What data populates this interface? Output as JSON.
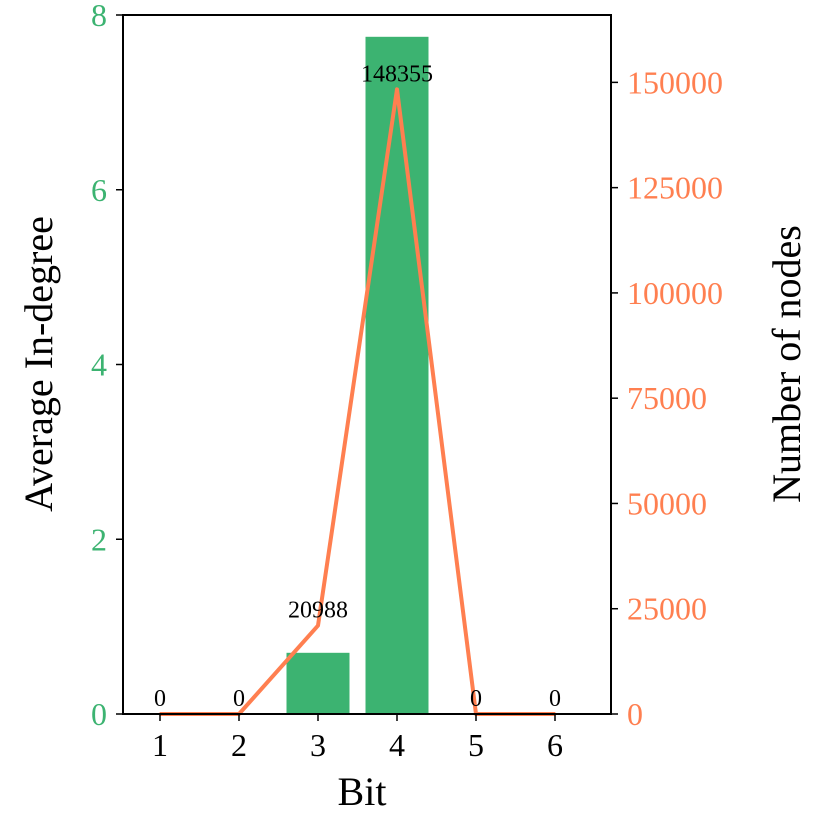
{
  "chart_data": {
    "type": "bar",
    "categories": [
      "1",
      "2",
      "3",
      "4",
      "5",
      "6"
    ],
    "xlabel": "Bit",
    "series": [
      {
        "name": "Average In-degree",
        "type": "bar",
        "axis": "left",
        "color": "#3cb371",
        "values": [
          0,
          0,
          0.7,
          7.75,
          0,
          0
        ]
      },
      {
        "name": "Number of nodes",
        "type": "line",
        "axis": "right",
        "color": "#ff7f50",
        "values": [
          0,
          0,
          20988,
          148355,
          0,
          0
        ],
        "data_labels": [
          "0",
          "0",
          "20988",
          "148355",
          "0",
          "0"
        ]
      }
    ],
    "y_left": {
      "label": "Average In-degree",
      "lim": [
        0,
        8
      ],
      "ticks": [
        "0",
        "2",
        "4",
        "6",
        "8"
      ],
      "tick_values": [
        0,
        2,
        4,
        6,
        8
      ],
      "color": "#3cb371"
    },
    "y_right": {
      "label": "Number of nodes",
      "lim": [
        0,
        166000
      ],
      "ticks": [
        "0",
        "25000",
        "50000",
        "75000",
        "100000",
        "125000",
        "150000"
      ],
      "tick_values": [
        0,
        25000,
        50000,
        75000,
        100000,
        125000,
        150000
      ],
      "color": "#ff7f50"
    },
    "grid": false,
    "legend": "none"
  }
}
